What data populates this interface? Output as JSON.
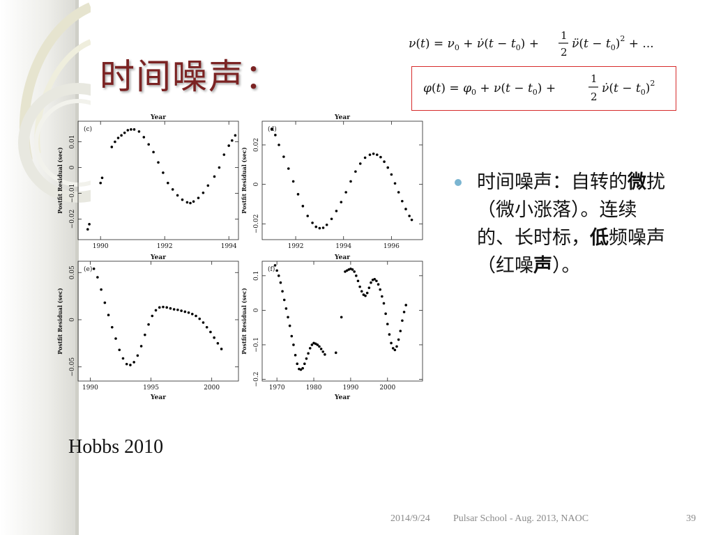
{
  "slide": {
    "title": "时间噪声：",
    "credit": "Hobbs 2010",
    "bullet_parts": [
      {
        "text": "时间噪声：自转的",
        "bold": false
      },
      {
        "text": "微",
        "bold": true
      },
      {
        "text": "扰（微小涨落）。连续的、长时标，",
        "bold": false
      },
      {
        "text": "低",
        "bold": true
      },
      {
        "text": "频噪声（红噪",
        "bold": false
      },
      {
        "text": "声",
        "bold": true
      },
      {
        "text": "）。",
        "bold": false
      }
    ]
  },
  "footer": {
    "date": "2014/9/24",
    "event": "Pulsar School  - Aug. 2013, NAOC",
    "page": "39"
  },
  "colors": {
    "title": "#7b2323",
    "eq_box": "#d62b2b",
    "bullet_dot": "#7bb5d1",
    "footer_text": "#8a8a8a",
    "points": "#000000"
  },
  "chart_data": [
    {
      "type": "scatter",
      "panel_label": "(c)",
      "xlabel_top": "Year",
      "xlabel_bottom": "",
      "ylabel": "Postfit Residual (sec)",
      "xlim": [
        1989.3,
        1994.3
      ],
      "ylim": [
        -0.028,
        0.018
      ],
      "xticks": [
        1990,
        1992,
        1994
      ],
      "xticklabels": [
        "1990",
        "1992",
        "1994"
      ],
      "yticks": [
        -0.02,
        -0.01,
        0,
        0.01
      ],
      "yticklabels": [
        "−0.02",
        "−0.01",
        "0",
        "0.01"
      ],
      "x": [
        1989.6,
        1989.65,
        1990.0,
        1990.05,
        1990.35,
        1990.45,
        1990.55,
        1990.65,
        1990.75,
        1990.85,
        1990.95,
        1991.05,
        1991.2,
        1991.35,
        1991.5,
        1991.65,
        1991.8,
        1991.95,
        1992.1,
        1992.25,
        1992.4,
        1992.55,
        1992.7,
        1992.8,
        1992.9,
        1993.05,
        1993.2,
        1993.35,
        1993.55,
        1993.7,
        1993.85,
        1994.0,
        1994.1,
        1994.2
      ],
      "y": [
        -0.024,
        -0.022,
        -0.006,
        -0.004,
        0.008,
        0.01,
        0.0115,
        0.0125,
        0.0135,
        0.0145,
        0.0148,
        0.0148,
        0.014,
        0.0118,
        0.009,
        0.006,
        0.002,
        -0.002,
        -0.006,
        -0.0085,
        -0.0108,
        -0.0125,
        -0.0135,
        -0.0138,
        -0.0132,
        -0.0118,
        -0.0098,
        -0.007,
        -0.0035,
        0.0,
        0.005,
        0.0085,
        0.0105,
        0.0125
      ]
    },
    {
      "type": "scatter",
      "panel_label": "(d)",
      "xlabel_top": "Year",
      "xlabel_bottom": "",
      "ylabel": "Postfit Residual (sec)",
      "xlim": [
        1990.6,
        1997.3
      ],
      "ylim": [
        -0.028,
        0.032
      ],
      "xticks": [
        1992,
        1994,
        1996
      ],
      "xticklabels": [
        "1992",
        "1994",
        "1996"
      ],
      "yticks": [
        -0.02,
        0,
        0.02
      ],
      "yticklabels": [
        "−0.02",
        "0",
        "0.02"
      ],
      "x": [
        1991.0,
        1991.15,
        1991.3,
        1991.5,
        1991.7,
        1991.9,
        1992.1,
        1992.3,
        1992.5,
        1992.7,
        1992.85,
        1993.0,
        1993.15,
        1993.3,
        1993.5,
        1993.7,
        1993.9,
        1994.1,
        1994.3,
        1994.5,
        1994.7,
        1994.9,
        1995.1,
        1995.25,
        1995.4,
        1995.55,
        1995.7,
        1995.85,
        1996.0,
        1996.15,
        1996.3,
        1996.45,
        1996.6,
        1996.75,
        1996.85
      ],
      "y": [
        0.028,
        0.025,
        0.02,
        0.014,
        0.008,
        0.0015,
        -0.005,
        -0.011,
        -0.016,
        -0.0195,
        -0.0215,
        -0.0222,
        -0.022,
        -0.0205,
        -0.0175,
        -0.0135,
        -0.009,
        -0.004,
        0.0015,
        0.0065,
        0.0105,
        0.0135,
        0.015,
        0.0155,
        0.015,
        0.0138,
        0.0115,
        0.0085,
        0.005,
        0.0005,
        -0.004,
        -0.0085,
        -0.0125,
        -0.016,
        -0.018
      ]
    },
    {
      "type": "scatter",
      "panel_label": "(e)",
      "xlabel_top": "Year",
      "xlabel_bottom": "Year",
      "ylabel": "Postfit Residual (sec)",
      "xlim": [
        1989.0,
        2002.2
      ],
      "ylim": [
        -0.065,
        0.062
      ],
      "xticks": [
        1990,
        1995,
        2000
      ],
      "xticklabels": [
        "1990",
        "1995",
        "2000"
      ],
      "yticks": [
        -0.05,
        0,
        0.05
      ],
      "yticklabels": [
        "−0.05",
        "0",
        "0.05"
      ],
      "x": [
        1990.3,
        1990.6,
        1990.9,
        1991.2,
        1991.5,
        1991.8,
        1992.1,
        1992.4,
        1992.7,
        1993.0,
        1993.3,
        1993.6,
        1993.9,
        1994.2,
        1994.5,
        1994.8,
        1995.1,
        1995.4,
        1995.7,
        1996.0,
        1996.3,
        1996.6,
        1996.9,
        1997.2,
        1997.5,
        1997.8,
        1998.1,
        1998.4,
        1998.7,
        1999.0,
        1999.3,
        1999.6,
        1999.9,
        2000.2,
        2000.5,
        2000.8
      ],
      "y": [
        0.054,
        0.045,
        0.032,
        0.018,
        0.005,
        -0.008,
        -0.02,
        -0.032,
        -0.041,
        -0.047,
        -0.048,
        -0.045,
        -0.038,
        -0.028,
        -0.016,
        -0.005,
        0.004,
        0.01,
        0.013,
        0.0135,
        0.013,
        0.012,
        0.011,
        0.0105,
        0.0095,
        0.0085,
        0.0075,
        0.006,
        0.004,
        0.001,
        -0.003,
        -0.008,
        -0.013,
        -0.019,
        -0.025,
        -0.031
      ]
    },
    {
      "type": "scatter",
      "panel_label": "(f)",
      "xlabel_top": "Year",
      "xlabel_bottom": "Year",
      "ylabel": "Postfit Residual (sec)",
      "xlim": [
        1966.0,
        2009.5
      ],
      "ylim": [
        -0.205,
        0.142
      ],
      "xticks": [
        1970,
        1980,
        1990,
        2000
      ],
      "xticklabels": [
        "1970",
        "1980",
        "1990",
        "2000"
      ],
      "yticks": [
        -0.2,
        -0.1,
        0,
        0.1
      ],
      "yticklabels": [
        "−0.2",
        "−0.1",
        "0",
        "0.1"
      ],
      "x": [
        1969.5,
        1970.0,
        1970.5,
        1971.0,
        1971.5,
        1972.0,
        1972.5,
        1973.0,
        1973.5,
        1974.0,
        1974.5,
        1975.0,
        1975.5,
        1976.0,
        1976.5,
        1977.0,
        1977.5,
        1978.0,
        1978.5,
        1979.0,
        1979.5,
        1980.0,
        1980.5,
        1981.0,
        1981.5,
        1982.0,
        1982.5,
        1983.0,
        1986.0,
        1987.5,
        1988.5,
        1989.0,
        1989.5,
        1990.0,
        1990.5,
        1991.0,
        1991.5,
        1992.0,
        1992.5,
        1993.0,
        1993.5,
        1994.0,
        1994.5,
        1995.0,
        1995.5,
        1996.0,
        1996.5,
        1997.0,
        1997.5,
        1998.0,
        1998.5,
        1999.0,
        1999.5,
        2000.0,
        2000.5,
        2001.0,
        2001.5,
        2002.0,
        2002.5,
        2003.0,
        2003.5,
        2004.0,
        2004.5,
        2005.0
      ],
      "y": [
        0.13,
        0.115,
        0.1,
        0.08,
        0.055,
        0.03,
        0.005,
        -0.02,
        -0.045,
        -0.075,
        -0.1,
        -0.13,
        -0.155,
        -0.17,
        -0.172,
        -0.168,
        -0.155,
        -0.14,
        -0.125,
        -0.11,
        -0.1,
        -0.095,
        -0.097,
        -0.1,
        -0.105,
        -0.112,
        -0.12,
        -0.128,
        -0.123,
        -0.02,
        0.112,
        0.115,
        0.118,
        0.12,
        0.118,
        0.112,
        0.1,
        0.085,
        0.068,
        0.055,
        0.045,
        0.042,
        0.05,
        0.065,
        0.08,
        0.088,
        0.09,
        0.085,
        0.075,
        0.06,
        0.04,
        0.02,
        -0.01,
        -0.04,
        -0.07,
        -0.095,
        -0.11,
        -0.115,
        -0.105,
        -0.085,
        -0.06,
        -0.03,
        -0.005,
        0.015
      ]
    }
  ]
}
